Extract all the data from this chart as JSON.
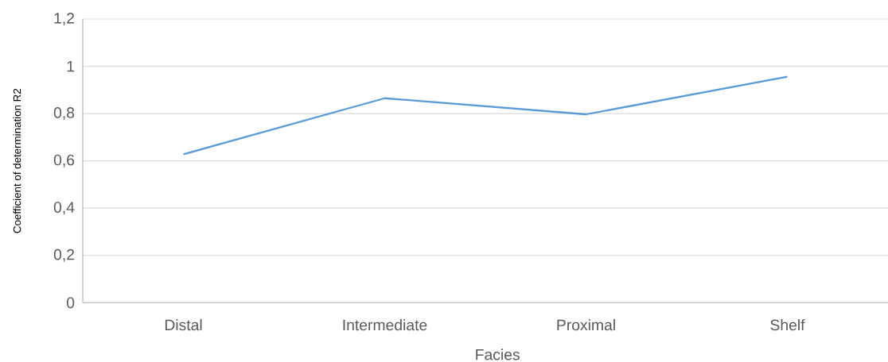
{
  "chart_data": {
    "type": "line",
    "xlabel": "Facies",
    "ylabel": "Coefficient of determination R2",
    "categories": [
      "Distal",
      "Intermediate",
      "Proximal",
      "Shelf"
    ],
    "values": [
      0.628,
      0.865,
      0.797,
      0.956
    ],
    "color": "#5b9bd5",
    "ylim": [
      0,
      1.2
    ],
    "yticks": [
      0,
      {
        "value": 0.2,
        "label": "0,2"
      },
      {
        "value": 0.4,
        "label": "0,4"
      },
      {
        "value": 0.6,
        "label": "0,6"
      },
      {
        "value": 0.8,
        "label": "0,8"
      },
      1,
      {
        "value": 1.2,
        "label": "1,2"
      }
    ],
    "grid": "y"
  }
}
